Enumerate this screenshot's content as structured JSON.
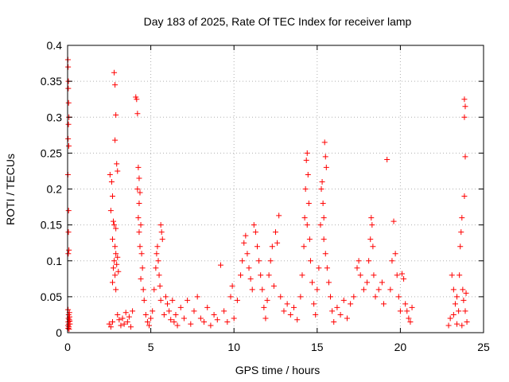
{
  "chart_data": {
    "type": "scatter",
    "title": "Day 183 of 2025, Rate Of TEC Index for receiver lamp",
    "xlabel": "GPS time / hours",
    "ylabel": "ROTI / TECUs",
    "xlim": [
      0,
      25
    ],
    "ylim": [
      0,
      0.4
    ],
    "x_ticks": [
      0,
      5,
      10,
      15,
      20,
      25
    ],
    "x_tick_labels": [
      "0",
      "5",
      "10",
      "15",
      "20",
      "25"
    ],
    "y_ticks": [
      0,
      0.05,
      0.1,
      0.15,
      0.2,
      0.25,
      0.3,
      0.35,
      0.4
    ],
    "y_tick_labels": [
      "0",
      "0.05",
      "0.1",
      "0.15",
      "0.2",
      "0.25",
      "0.3",
      "0.35",
      "0.4"
    ],
    "grid": true,
    "marker": "plus",
    "series": [
      {
        "color": "#ff0000",
        "points": [
          [
            0.02,
            0.38
          ],
          [
            0.03,
            0.37
          ],
          [
            0.05,
            0.35
          ],
          [
            0.04,
            0.34
          ],
          [
            0.06,
            0.32
          ],
          [
            0.08,
            0.3
          ],
          [
            0.05,
            0.29
          ],
          [
            0.03,
            0.27
          ],
          [
            0.07,
            0.26
          ],
          [
            0.02,
            0.22
          ],
          [
            0.06,
            0.17
          ],
          [
            0.05,
            0.14
          ],
          [
            0.08,
            0.115
          ],
          [
            0.04,
            0.11
          ],
          [
            0.03,
            0.032
          ],
          [
            0.06,
            0.025
          ],
          [
            0.05,
            0.02
          ],
          [
            0.04,
            0.015
          ],
          [
            0.07,
            0.012
          ],
          [
            0.02,
            0.01
          ],
          [
            0.08,
            0.008
          ],
          [
            0.1,
            0.018
          ],
          [
            0.12,
            0.022
          ],
          [
            0.09,
            0.005
          ],
          [
            0.14,
            0.012
          ],
          [
            0.11,
            0.028
          ],
          [
            0.03,
            0.006
          ],
          [
            0.13,
            0.016
          ],
          [
            2.5,
            0.012
          ],
          [
            2.6,
            0.008
          ],
          [
            2.7,
            0.015
          ],
          [
            2.55,
            0.22
          ],
          [
            2.65,
            0.21
          ],
          [
            2.7,
            0.19
          ],
          [
            2.6,
            0.17
          ],
          [
            2.75,
            0.155
          ],
          [
            2.8,
            0.15
          ],
          [
            2.7,
            0.13
          ],
          [
            2.85,
            0.12
          ],
          [
            2.9,
            0.11
          ],
          [
            2.8,
            0.1
          ],
          [
            2.95,
            0.095
          ],
          [
            2.75,
            0.09
          ],
          [
            2.85,
            0.08
          ],
          [
            2.7,
            0.07
          ],
          [
            2.8,
            0.362
          ],
          [
            2.85,
            0.345
          ],
          [
            2.9,
            0.303
          ],
          [
            2.85,
            0.268
          ],
          [
            2.95,
            0.235
          ],
          [
            3.0,
            0.225
          ],
          [
            2.9,
            0.145
          ],
          [
            3.0,
            0.105
          ],
          [
            3.05,
            0.085
          ],
          [
            2.9,
            0.06
          ],
          [
            3.0,
            0.025
          ],
          [
            3.1,
            0.018
          ],
          [
            3.2,
            0.01
          ],
          [
            3.3,
            0.02
          ],
          [
            3.4,
            0.012
          ],
          [
            3.5,
            0.028
          ],
          [
            3.6,
            0.015
          ],
          [
            3.7,
            0.022
          ],
          [
            3.8,
            0.008
          ],
          [
            3.9,
            0.03
          ],
          [
            4.1,
            0.328
          ],
          [
            4.15,
            0.325
          ],
          [
            4.2,
            0.305
          ],
          [
            4.25,
            0.23
          ],
          [
            4.3,
            0.215
          ],
          [
            4.2,
            0.2
          ],
          [
            4.35,
            0.195
          ],
          [
            4.3,
            0.18
          ],
          [
            4.25,
            0.16
          ],
          [
            4.4,
            0.15
          ],
          [
            4.3,
            0.14
          ],
          [
            4.35,
            0.12
          ],
          [
            4.45,
            0.11
          ],
          [
            4.5,
            0.09
          ],
          [
            4.4,
            0.075
          ],
          [
            4.55,
            0.06
          ],
          [
            4.6,
            0.045
          ],
          [
            4.7,
            0.025
          ],
          [
            4.8,
            0.015
          ],
          [
            4.9,
            0.01
          ],
          [
            5.0,
            0.02
          ],
          [
            5.1,
            0.03
          ],
          [
            5.2,
            0.06
          ],
          [
            5.3,
            0.09
          ],
          [
            5.35,
            0.11
          ],
          [
            5.4,
            0.12
          ],
          [
            5.45,
            0.1
          ],
          [
            5.5,
            0.08
          ],
          [
            5.55,
            0.065
          ],
          [
            5.6,
            0.15
          ],
          [
            5.65,
            0.14
          ],
          [
            5.7,
            0.13
          ],
          [
            5.6,
            0.045
          ],
          [
            5.8,
            0.025
          ],
          [
            5.9,
            0.05
          ],
          [
            6.0,
            0.04
          ],
          [
            6.1,
            0.03
          ],
          [
            6.2,
            0.018
          ],
          [
            6.3,
            0.045
          ],
          [
            6.4,
            0.015
          ],
          [
            6.5,
            0.025
          ],
          [
            6.6,
            0.01
          ],
          [
            6.8,
            0.035
          ],
          [
            7.0,
            0.02
          ],
          [
            7.2,
            0.045
          ],
          [
            7.4,
            0.012
          ],
          [
            7.6,
            0.03
          ],
          [
            7.8,
            0.05
          ],
          [
            8.0,
            0.02
          ],
          [
            8.2,
            0.015
          ],
          [
            8.4,
            0.035
          ],
          [
            8.6,
            0.01
          ],
          [
            8.8,
            0.025
          ],
          [
            9.0,
            0.018
          ],
          [
            9.2,
            0.094
          ],
          [
            9.4,
            0.03
          ],
          [
            9.6,
            0.015
          ],
          [
            9.8,
            0.05
          ],
          [
            9.9,
            0.065
          ],
          [
            10.0,
            0.02
          ],
          [
            10.2,
            0.045
          ],
          [
            10.4,
            0.08
          ],
          [
            10.5,
            0.1
          ],
          [
            10.6,
            0.125
          ],
          [
            10.7,
            0.135
          ],
          [
            10.8,
            0.11
          ],
          [
            10.9,
            0.09
          ],
          [
            11.0,
            0.075
          ],
          [
            11.1,
            0.06
          ],
          [
            11.2,
            0.15
          ],
          [
            11.3,
            0.14
          ],
          [
            11.4,
            0.12
          ],
          [
            11.5,
            0.1
          ],
          [
            11.6,
            0.08
          ],
          [
            11.7,
            0.06
          ],
          [
            11.8,
            0.035
          ],
          [
            11.9,
            0.02
          ],
          [
            12.0,
            0.045
          ],
          [
            12.1,
            0.08
          ],
          [
            12.2,
            0.1
          ],
          [
            12.3,
            0.12
          ],
          [
            12.4,
            0.065
          ],
          [
            12.5,
            0.14
          ],
          [
            12.6,
            0.125
          ],
          [
            12.7,
            0.163
          ],
          [
            12.8,
            0.05
          ],
          [
            13.0,
            0.03
          ],
          [
            13.2,
            0.04
          ],
          [
            13.4,
            0.025
          ],
          [
            13.6,
            0.035
          ],
          [
            13.8,
            0.018
          ],
          [
            14.0,
            0.05
          ],
          [
            14.1,
            0.08
          ],
          [
            14.2,
            0.12
          ],
          [
            14.25,
            0.16
          ],
          [
            14.3,
            0.2
          ],
          [
            14.35,
            0.24
          ],
          [
            14.4,
            0.25
          ],
          [
            14.45,
            0.22
          ],
          [
            14.5,
            0.18
          ],
          [
            14.4,
            0.15
          ],
          [
            14.55,
            0.13
          ],
          [
            14.6,
            0.1
          ],
          [
            14.7,
            0.07
          ],
          [
            14.8,
            0.04
          ],
          [
            14.9,
            0.025
          ],
          [
            15.0,
            0.06
          ],
          [
            15.1,
            0.09
          ],
          [
            15.2,
            0.15
          ],
          [
            15.25,
            0.2
          ],
          [
            15.3,
            0.21
          ],
          [
            15.35,
            0.18
          ],
          [
            15.4,
            0.16
          ],
          [
            15.45,
            0.265
          ],
          [
            15.5,
            0.245
          ],
          [
            15.55,
            0.23
          ],
          [
            15.4,
            0.13
          ],
          [
            15.5,
            0.11
          ],
          [
            15.6,
            0.09
          ],
          [
            15.7,
            0.07
          ],
          [
            15.8,
            0.05
          ],
          [
            15.9,
            0.03
          ],
          [
            16.0,
            0.015
          ],
          [
            16.2,
            0.035
          ],
          [
            16.4,
            0.025
          ],
          [
            16.6,
            0.045
          ],
          [
            16.8,
            0.02
          ],
          [
            17.0,
            0.04
          ],
          [
            17.2,
            0.05
          ],
          [
            17.4,
            0.09
          ],
          [
            17.5,
            0.1
          ],
          [
            17.6,
            0.08
          ],
          [
            17.8,
            0.06
          ],
          [
            18.0,
            0.07
          ],
          [
            18.1,
            0.1
          ],
          [
            18.2,
            0.13
          ],
          [
            18.25,
            0.16
          ],
          [
            18.3,
            0.15
          ],
          [
            18.35,
            0.12
          ],
          [
            18.4,
            0.08
          ],
          [
            18.5,
            0.05
          ],
          [
            18.7,
            0.06
          ],
          [
            18.9,
            0.07
          ],
          [
            19.0,
            0.04
          ],
          [
            19.2,
            0.241
          ],
          [
            19.4,
            0.06
          ],
          [
            19.5,
            0.1
          ],
          [
            19.6,
            0.155
          ],
          [
            19.7,
            0.11
          ],
          [
            19.8,
            0.08
          ],
          [
            19.9,
            0.05
          ],
          [
            20.0,
            0.03
          ],
          [
            20.1,
            0.082
          ],
          [
            20.2,
            0.075
          ],
          [
            20.3,
            0.04
          ],
          [
            20.4,
            0.03
          ],
          [
            20.5,
            0.02
          ],
          [
            20.6,
            0.015
          ],
          [
            20.7,
            0.035
          ],
          [
            22.9,
            0.01
          ],
          [
            23.0,
            0.02
          ],
          [
            23.1,
            0.08
          ],
          [
            23.2,
            0.06
          ],
          [
            23.3,
            0.04
          ],
          [
            23.4,
            0.05
          ],
          [
            23.5,
            0.03
          ],
          [
            23.6,
            0.12
          ],
          [
            23.65,
            0.14
          ],
          [
            23.7,
            0.16
          ],
          [
            23.55,
            0.08
          ],
          [
            23.75,
            0.06
          ],
          [
            23.8,
            0.045
          ],
          [
            23.85,
            0.325
          ],
          [
            23.9,
            0.315
          ],
          [
            23.85,
            0.3
          ],
          [
            23.9,
            0.245
          ],
          [
            23.85,
            0.19
          ],
          [
            23.95,
            0.055
          ],
          [
            23.9,
            0.03
          ],
          [
            24.0,
            0.015
          ],
          [
            23.7,
            0.01
          ],
          [
            23.4,
            0.012
          ],
          [
            23.2,
            0.025
          ]
        ]
      }
    ]
  }
}
